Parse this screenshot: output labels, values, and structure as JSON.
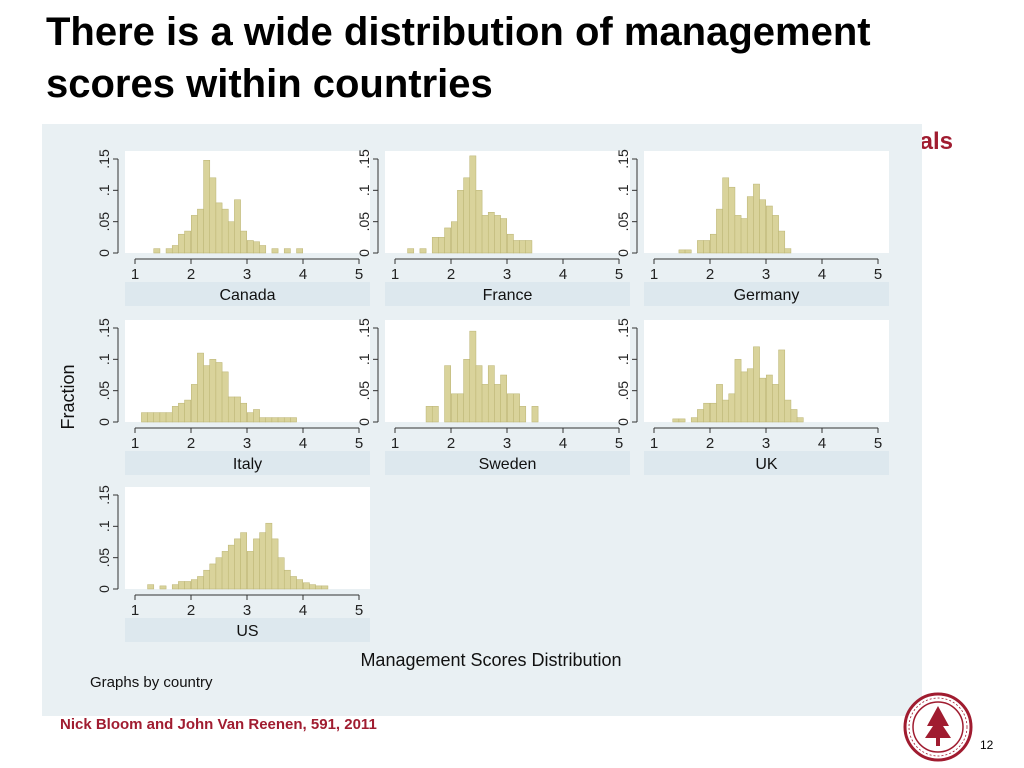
{
  "slide": {
    "title": "There is a wide distribution of management scores within countries",
    "tag": "Hospitals",
    "citation": "Nick Bloom and John Van Reenen, 591, 2011",
    "page_number": "12"
  },
  "colors": {
    "bar_fill": "#d9d39b",
    "bar_stroke": "#b9b270",
    "panel_bg": "#ffffff",
    "outer_bg": "#e9f0f3",
    "strip_bg": "#dde8ee",
    "accent": "#a01c30"
  },
  "chart_data": {
    "type": "bar",
    "subtype": "histogram-small-multiples",
    "title": "Management Scores Distribution",
    "ylabel": "Fraction",
    "note": "Graphs by country",
    "xlim": [
      1,
      5
    ],
    "ylim": [
      0,
      0.15
    ],
    "x_ticks": [
      1,
      2,
      3,
      4,
      5
    ],
    "y_ticks": [
      "0",
      ".05",
      ".1",
      ".15"
    ],
    "bin_width": 0.111,
    "grid": false,
    "layout": "3 columns by 3 rows, panels in reading order",
    "panels": [
      {
        "name": "Canada",
        "bins": [
          {
            "x": 1.39,
            "y": 0.007
          },
          {
            "x": 1.61,
            "y": 0.007
          },
          {
            "x": 1.72,
            "y": 0.012
          },
          {
            "x": 1.83,
            "y": 0.03
          },
          {
            "x": 1.94,
            "y": 0.035
          },
          {
            "x": 2.06,
            "y": 0.06
          },
          {
            "x": 2.17,
            "y": 0.07
          },
          {
            "x": 2.28,
            "y": 0.148
          },
          {
            "x": 2.39,
            "y": 0.12
          },
          {
            "x": 2.5,
            "y": 0.08
          },
          {
            "x": 2.61,
            "y": 0.07
          },
          {
            "x": 2.72,
            "y": 0.05
          },
          {
            "x": 2.83,
            "y": 0.085
          },
          {
            "x": 2.94,
            "y": 0.035
          },
          {
            "x": 3.06,
            "y": 0.02
          },
          {
            "x": 3.17,
            "y": 0.018
          },
          {
            "x": 3.28,
            "y": 0.012
          },
          {
            "x": 3.5,
            "y": 0.007
          },
          {
            "x": 3.72,
            "y": 0.007
          },
          {
            "x": 3.94,
            "y": 0.007
          }
        ]
      },
      {
        "name": "France",
        "bins": [
          {
            "x": 1.28,
            "y": 0.007
          },
          {
            "x": 1.5,
            "y": 0.007
          },
          {
            "x": 1.72,
            "y": 0.025
          },
          {
            "x": 1.83,
            "y": 0.025
          },
          {
            "x": 1.94,
            "y": 0.04
          },
          {
            "x": 2.06,
            "y": 0.05
          },
          {
            "x": 2.17,
            "y": 0.1
          },
          {
            "x": 2.28,
            "y": 0.12
          },
          {
            "x": 2.39,
            "y": 0.155
          },
          {
            "x": 2.5,
            "y": 0.1
          },
          {
            "x": 2.61,
            "y": 0.06
          },
          {
            "x": 2.72,
            "y": 0.065
          },
          {
            "x": 2.83,
            "y": 0.06
          },
          {
            "x": 2.94,
            "y": 0.055
          },
          {
            "x": 3.06,
            "y": 0.03
          },
          {
            "x": 3.17,
            "y": 0.02
          },
          {
            "x": 3.28,
            "y": 0.02
          },
          {
            "x": 3.39,
            "y": 0.02
          }
        ]
      },
      {
        "name": "Germany",
        "bins": [
          {
            "x": 1.5,
            "y": 0.005
          },
          {
            "x": 1.61,
            "y": 0.005
          },
          {
            "x": 1.83,
            "y": 0.02
          },
          {
            "x": 1.94,
            "y": 0.02
          },
          {
            "x": 2.06,
            "y": 0.03
          },
          {
            "x": 2.17,
            "y": 0.07
          },
          {
            "x": 2.28,
            "y": 0.12
          },
          {
            "x": 2.39,
            "y": 0.105
          },
          {
            "x": 2.5,
            "y": 0.06
          },
          {
            "x": 2.61,
            "y": 0.055
          },
          {
            "x": 2.72,
            "y": 0.09
          },
          {
            "x": 2.83,
            "y": 0.11
          },
          {
            "x": 2.94,
            "y": 0.085
          },
          {
            "x": 3.06,
            "y": 0.075
          },
          {
            "x": 3.17,
            "y": 0.06
          },
          {
            "x": 3.28,
            "y": 0.035
          },
          {
            "x": 3.39,
            "y": 0.007
          }
        ]
      },
      {
        "name": "Italy",
        "bins": [
          {
            "x": 1.17,
            "y": 0.015
          },
          {
            "x": 1.28,
            "y": 0.015
          },
          {
            "x": 1.39,
            "y": 0.015
          },
          {
            "x": 1.5,
            "y": 0.015
          },
          {
            "x": 1.61,
            "y": 0.015
          },
          {
            "x": 1.72,
            "y": 0.025
          },
          {
            "x": 1.83,
            "y": 0.03
          },
          {
            "x": 1.94,
            "y": 0.035
          },
          {
            "x": 2.06,
            "y": 0.06
          },
          {
            "x": 2.17,
            "y": 0.11
          },
          {
            "x": 2.28,
            "y": 0.09
          },
          {
            "x": 2.39,
            "y": 0.1
          },
          {
            "x": 2.5,
            "y": 0.095
          },
          {
            "x": 2.61,
            "y": 0.08
          },
          {
            "x": 2.72,
            "y": 0.04
          },
          {
            "x": 2.83,
            "y": 0.04
          },
          {
            "x": 2.94,
            "y": 0.03
          },
          {
            "x": 3.06,
            "y": 0.015
          },
          {
            "x": 3.17,
            "y": 0.02
          },
          {
            "x": 3.28,
            "y": 0.007
          },
          {
            "x": 3.39,
            "y": 0.007
          },
          {
            "x": 3.5,
            "y": 0.007
          },
          {
            "x": 3.61,
            "y": 0.007
          },
          {
            "x": 3.72,
            "y": 0.007
          },
          {
            "x": 3.83,
            "y": 0.007
          }
        ]
      },
      {
        "name": "Sweden",
        "bins": [
          {
            "x": 1.61,
            "y": 0.025
          },
          {
            "x": 1.72,
            "y": 0.025
          },
          {
            "x": 1.94,
            "y": 0.09
          },
          {
            "x": 2.06,
            "y": 0.045
          },
          {
            "x": 2.17,
            "y": 0.045
          },
          {
            "x": 2.28,
            "y": 0.1
          },
          {
            "x": 2.39,
            "y": 0.145
          },
          {
            "x": 2.5,
            "y": 0.09
          },
          {
            "x": 2.61,
            "y": 0.06
          },
          {
            "x": 2.72,
            "y": 0.09
          },
          {
            "x": 2.83,
            "y": 0.06
          },
          {
            "x": 2.94,
            "y": 0.075
          },
          {
            "x": 3.06,
            "y": 0.045
          },
          {
            "x": 3.17,
            "y": 0.045
          },
          {
            "x": 3.28,
            "y": 0.025
          },
          {
            "x": 3.5,
            "y": 0.025
          }
        ]
      },
      {
        "name": "UK",
        "bins": [
          {
            "x": 1.39,
            "y": 0.005
          },
          {
            "x": 1.5,
            "y": 0.005
          },
          {
            "x": 1.72,
            "y": 0.007
          },
          {
            "x": 1.83,
            "y": 0.02
          },
          {
            "x": 1.94,
            "y": 0.03
          },
          {
            "x": 2.06,
            "y": 0.03
          },
          {
            "x": 2.17,
            "y": 0.06
          },
          {
            "x": 2.28,
            "y": 0.035
          },
          {
            "x": 2.39,
            "y": 0.045
          },
          {
            "x": 2.5,
            "y": 0.1
          },
          {
            "x": 2.61,
            "y": 0.08
          },
          {
            "x": 2.72,
            "y": 0.085
          },
          {
            "x": 2.83,
            "y": 0.12
          },
          {
            "x": 2.94,
            "y": 0.07
          },
          {
            "x": 3.06,
            "y": 0.075
          },
          {
            "x": 3.17,
            "y": 0.06
          },
          {
            "x": 3.28,
            "y": 0.115
          },
          {
            "x": 3.39,
            "y": 0.035
          },
          {
            "x": 3.5,
            "y": 0.02
          },
          {
            "x": 3.61,
            "y": 0.007
          }
        ]
      },
      {
        "name": "US",
        "bins": [
          {
            "x": 1.28,
            "y": 0.007
          },
          {
            "x": 1.5,
            "y": 0.005
          },
          {
            "x": 1.72,
            "y": 0.007
          },
          {
            "x": 1.83,
            "y": 0.012
          },
          {
            "x": 1.94,
            "y": 0.012
          },
          {
            "x": 2.06,
            "y": 0.015
          },
          {
            "x": 2.17,
            "y": 0.02
          },
          {
            "x": 2.28,
            "y": 0.03
          },
          {
            "x": 2.39,
            "y": 0.04
          },
          {
            "x": 2.5,
            "y": 0.05
          },
          {
            "x": 2.61,
            "y": 0.06
          },
          {
            "x": 2.72,
            "y": 0.07
          },
          {
            "x": 2.83,
            "y": 0.08
          },
          {
            "x": 2.94,
            "y": 0.09
          },
          {
            "x": 3.06,
            "y": 0.06
          },
          {
            "x": 3.17,
            "y": 0.08
          },
          {
            "x": 3.28,
            "y": 0.09
          },
          {
            "x": 3.39,
            "y": 0.105
          },
          {
            "x": 3.5,
            "y": 0.08
          },
          {
            "x": 3.61,
            "y": 0.05
          },
          {
            "x": 3.72,
            "y": 0.03
          },
          {
            "x": 3.83,
            "y": 0.02
          },
          {
            "x": 3.94,
            "y": 0.015
          },
          {
            "x": 4.06,
            "y": 0.01
          },
          {
            "x": 4.17,
            "y": 0.007
          },
          {
            "x": 4.28,
            "y": 0.005
          },
          {
            "x": 4.39,
            "y": 0.005
          }
        ]
      }
    ]
  }
}
